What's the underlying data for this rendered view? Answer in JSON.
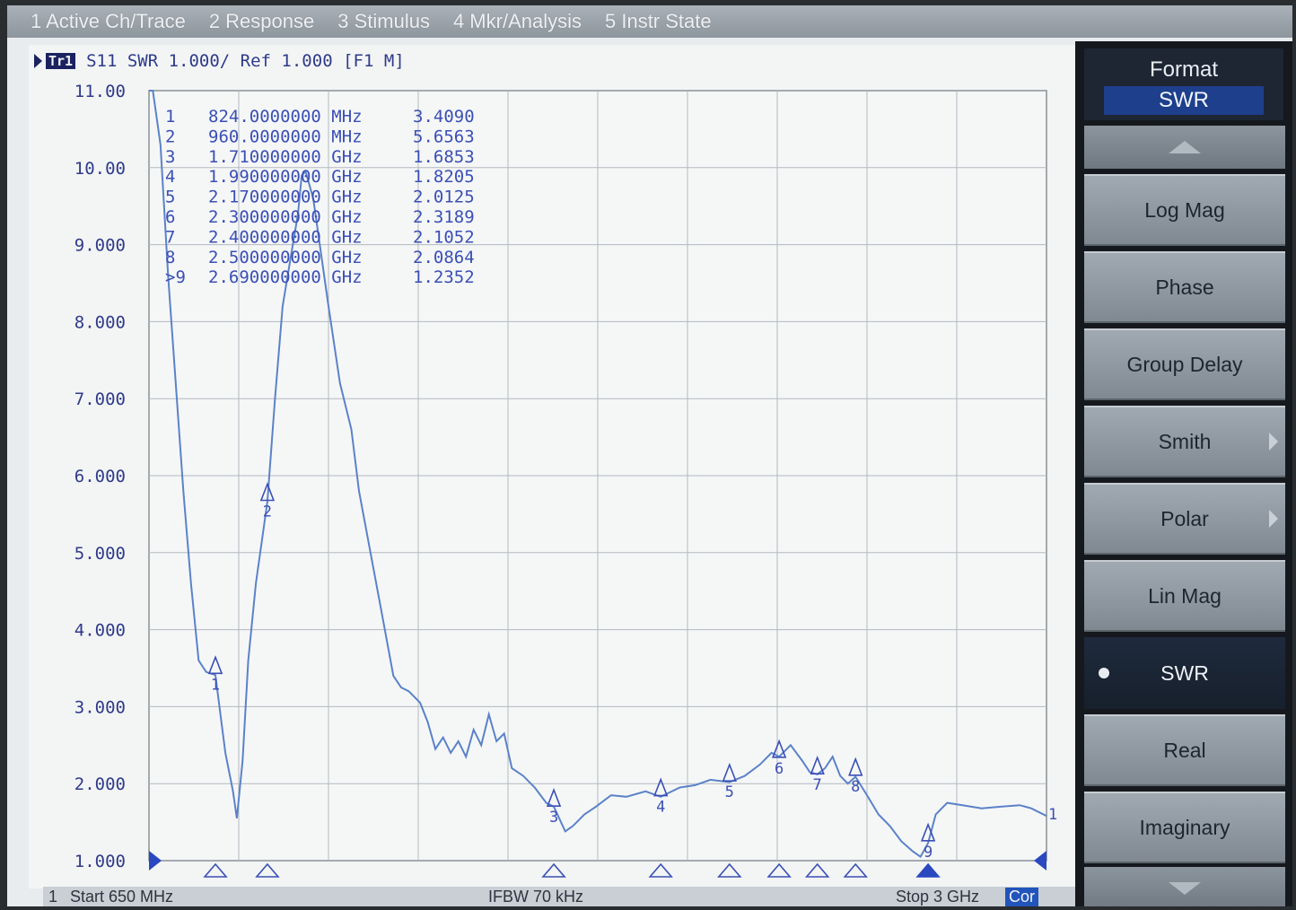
{
  "menu": [
    "1 Active Ch/Trace",
    "2 Response",
    "3 Stimulus",
    "4 Mkr/Analysis",
    "5 Instr State"
  ],
  "trace_header": {
    "trace_id": "Tr1",
    "text": "S11  SWR 1.000/ Ref 1.000 [F1 M]"
  },
  "markers": [
    {
      "num": "1",
      "freq": "824.0000000 MHz",
      "value": "3.4090"
    },
    {
      "num": "2",
      "freq": "960.0000000 MHz",
      "value": "5.6563"
    },
    {
      "num": "3",
      "freq": "1.710000000 GHz",
      "value": "1.6853"
    },
    {
      "num": "4",
      "freq": "1.990000000 GHz",
      "value": "1.8205"
    },
    {
      "num": "5",
      "freq": "2.170000000 GHz",
      "value": "2.0125"
    },
    {
      "num": "6",
      "freq": "2.300000000 GHz",
      "value": "2.3189"
    },
    {
      "num": "7",
      "freq": "2.400000000 GHz",
      "value": "2.1052"
    },
    {
      "num": "8",
      "freq": "2.500000000 GHz",
      "value": "2.0864"
    },
    {
      "num": ">9",
      "freq": "2.690000000 GHz",
      "value": "1.2352"
    }
  ],
  "status": {
    "channel": "1",
    "start": "Start 650 MHz",
    "ifbw": "IFBW 70 kHz",
    "stop": "Stop 3 GHz",
    "cor": "Cor"
  },
  "softkeys": {
    "title": "Format",
    "current_value": "SWR",
    "items": [
      {
        "label": "Log Mag"
      },
      {
        "label": "Phase"
      },
      {
        "label": "Group Delay"
      },
      {
        "label": "Smith",
        "submenu": true
      },
      {
        "label": "Polar",
        "submenu": true
      },
      {
        "label": "Lin Mag"
      },
      {
        "label": "SWR",
        "active": true
      },
      {
        "label": "Real"
      },
      {
        "label": "Imaginary"
      }
    ]
  },
  "chart_data": {
    "type": "line",
    "title": "",
    "xlabel": "",
    "ylabel": "",
    "x_unit": "MHz",
    "xlim": [
      650,
      3000
    ],
    "ylim": [
      1.0,
      11.0
    ],
    "y_tick_labels": [
      "11.00",
      "10.00",
      "9.000",
      "8.000",
      "7.000",
      "6.000",
      "5.000",
      "4.000",
      "3.000",
      "2.000",
      "1.000"
    ],
    "grid": true,
    "trace_color": "#5b82c8",
    "series": [
      {
        "x": [
          650,
          660,
          680,
          700,
          720,
          740,
          760,
          780,
          800,
          824,
          850,
          870,
          880,
          895,
          910,
          930,
          960,
          980,
          1000,
          1020,
          1040,
          1050,
          1060,
          1080,
          1100,
          1120,
          1150,
          1180,
          1200,
          1230,
          1260,
          1290,
          1310,
          1330,
          1360,
          1380,
          1400,
          1420,
          1440,
          1460,
          1480,
          1500,
          1520,
          1540,
          1560,
          1580,
          1600,
          1630,
          1660,
          1690,
          1710,
          1740,
          1760,
          1790,
          1820,
          1860,
          1900,
          1950,
          1990,
          2040,
          2080,
          2120,
          2170,
          2210,
          2250,
          2280,
          2300,
          2330,
          2360,
          2380,
          2400,
          2420,
          2440,
          2460,
          2480,
          2500,
          2530,
          2560,
          2590,
          2620,
          2650,
          2670,
          2690,
          2710,
          2740,
          2780,
          2830,
          2880,
          2930,
          2960,
          3000
        ],
        "y": [
          11.0,
          11.0,
          10.3,
          8.6,
          7.2,
          5.8,
          4.6,
          3.6,
          3.45,
          3.41,
          2.4,
          1.9,
          1.55,
          2.3,
          3.6,
          4.6,
          5.66,
          7.0,
          8.2,
          8.8,
          9.4,
          9.9,
          9.95,
          9.6,
          8.9,
          8.2,
          7.2,
          6.6,
          5.8,
          5.0,
          4.2,
          3.4,
          3.25,
          3.2,
          3.05,
          2.8,
          2.45,
          2.6,
          2.4,
          2.55,
          2.35,
          2.7,
          2.5,
          2.9,
          2.55,
          2.65,
          2.2,
          2.1,
          1.95,
          1.75,
          1.7,
          1.38,
          1.45,
          1.6,
          1.7,
          1.85,
          1.83,
          1.9,
          1.83,
          1.95,
          1.98,
          2.05,
          2.02,
          2.1,
          2.25,
          2.4,
          2.35,
          2.5,
          2.3,
          2.15,
          2.12,
          2.2,
          2.35,
          2.1,
          2.0,
          2.09,
          1.85,
          1.6,
          1.45,
          1.25,
          1.12,
          1.05,
          1.23,
          1.6,
          1.75,
          1.72,
          1.68,
          1.7,
          1.72,
          1.68,
          1.58
        ]
      }
    ],
    "marker_points": [
      {
        "x": 824,
        "y": 3.409
      },
      {
        "x": 960,
        "y": 5.6563
      },
      {
        "x": 1710,
        "y": 1.6853
      },
      {
        "x": 1990,
        "y": 1.8205
      },
      {
        "x": 2170,
        "y": 2.0125
      },
      {
        "x": 2300,
        "y": 2.3189
      },
      {
        "x": 2400,
        "y": 2.1052
      },
      {
        "x": 2500,
        "y": 2.0864
      },
      {
        "x": 2690,
        "y": 1.2352
      }
    ]
  }
}
